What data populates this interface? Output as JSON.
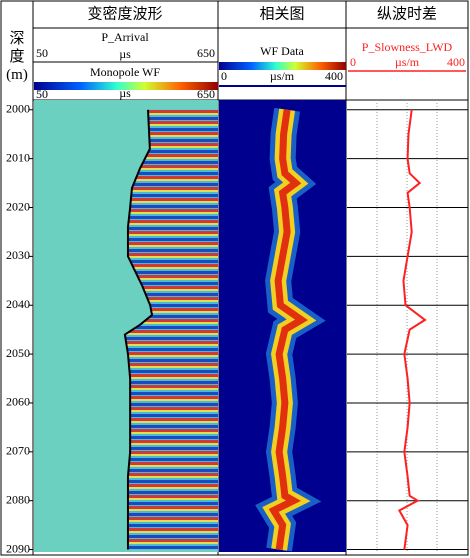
{
  "chart_data": [
    {
      "type": "density",
      "title": "变密度波形",
      "ylabel": "深度(m)",
      "ylim": [
        1998,
        2090.5
      ],
      "yticks": [
        2000,
        2010,
        2020,
        2030,
        2040,
        2050,
        2060,
        2070,
        2080,
        2090
      ],
      "xlabel": "P_Arrival",
      "xunit": "µs",
      "xlim": [
        50,
        650
      ],
      "colorbar": {
        "label": "Monopole WF",
        "unit": "µs",
        "lim": [
          50,
          650
        ]
      },
      "depth": [
        2000,
        2004,
        2008,
        2012,
        2016,
        2020,
        2024,
        2030,
        2033,
        2036,
        2040,
        2042,
        2044,
        2046,
        2050,
        2055,
        2060,
        2065,
        2070,
        2075,
        2080,
        2085,
        2090
      ],
      "series": [
        {
          "name": "P_Arrival",
          "color": "#000000",
          "values": [
            423,
            426,
            429,
            397,
            371,
            365,
            358,
            358,
            381,
            404,
            430,
            436,
            397,
            348,
            358,
            365,
            365,
            365,
            365,
            358,
            358,
            358,
            358
          ]
        }
      ]
    },
    {
      "type": "correlation",
      "title": "相关图",
      "colorbar": {
        "label": "WF Data",
        "unit": "µs/m",
        "lim": [
          0,
          400
        ]
      }
    },
    {
      "type": "line",
      "title": "纵波时差",
      "xunit": "µs/m",
      "xlim": [
        0,
        400
      ],
      "depth": [
        2000,
        2005,
        2010,
        2013,
        2015,
        2017,
        2020,
        2025,
        2030,
        2035,
        2040,
        2043,
        2045,
        2050,
        2055,
        2060,
        2065,
        2070,
        2075,
        2079,
        2080,
        2082,
        2085,
        2090
      ],
      "series": [
        {
          "name": "P_Slowness_LWD",
          "color": "#ff2020",
          "values": [
            216,
            205,
            202,
            209,
            243,
            202,
            209,
            216,
            202,
            188,
            195,
            261,
            209,
            191,
            202,
            209,
            202,
            191,
            202,
            209,
            236,
            174,
            202,
            191
          ]
        }
      ]
    }
  ]
}
